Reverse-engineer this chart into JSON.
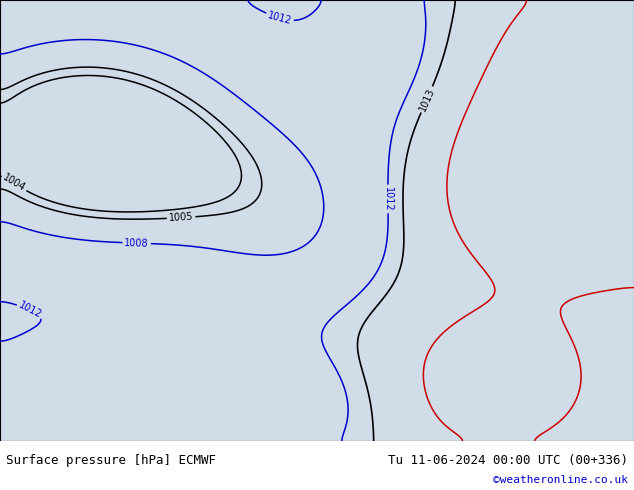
{
  "title_left": "Surface pressure [hPa] ECMWF",
  "title_right": "Tu 11-06-2024 00:00 UTC (00+336)",
  "credit": "©weatheronline.co.uk",
  "ocean_color": "#d0dce8",
  "land_color": "#c8e6a0",
  "border_color": "#999999",
  "contour_black": "#000000",
  "contour_blue": "#0000cc",
  "contour_red": "#cc0000",
  "label_fontsize": 7,
  "title_fontsize": 9,
  "credit_fontsize": 8,
  "credit_color": "#0000cc",
  "lon_min": 90,
  "lon_max": 165,
  "lat_min": -18,
  "lat_max": 48
}
